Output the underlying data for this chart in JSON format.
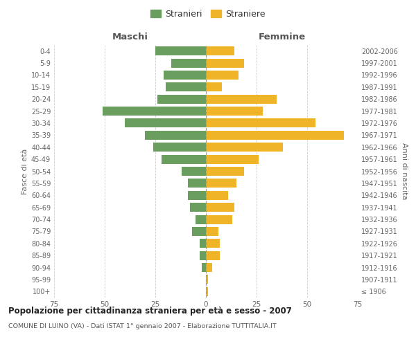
{
  "age_groups": [
    "100+",
    "95-99",
    "90-94",
    "85-89",
    "80-84",
    "75-79",
    "70-74",
    "65-69",
    "60-64",
    "55-59",
    "50-54",
    "45-49",
    "40-44",
    "35-39",
    "30-34",
    "25-29",
    "20-24",
    "15-19",
    "10-14",
    "5-9",
    "0-4"
  ],
  "birth_years": [
    "≤ 1906",
    "1907-1911",
    "1912-1916",
    "1917-1921",
    "1922-1926",
    "1927-1931",
    "1932-1936",
    "1937-1941",
    "1942-1946",
    "1947-1951",
    "1952-1956",
    "1957-1961",
    "1962-1966",
    "1967-1971",
    "1972-1976",
    "1977-1981",
    "1982-1986",
    "1987-1991",
    "1992-1996",
    "1997-2001",
    "2002-2006"
  ],
  "males": [
    0,
    0,
    2,
    3,
    3,
    7,
    5,
    8,
    9,
    9,
    12,
    22,
    26,
    30,
    40,
    51,
    24,
    20,
    21,
    17,
    25
  ],
  "females": [
    1,
    1,
    3,
    7,
    7,
    6,
    13,
    14,
    11,
    15,
    19,
    26,
    38,
    68,
    54,
    28,
    35,
    8,
    16,
    19,
    14
  ],
  "male_color": "#6a9e5f",
  "female_color": "#f0b429",
  "background_color": "#ffffff",
  "grid_color": "#cccccc",
  "title": "Popolazione per cittadinanza straniera per età e sesso - 2007",
  "subtitle": "COMUNE DI LUINO (VA) - Dati ISTAT 1° gennaio 2007 - Elaborazione TUTTITALIA.IT",
  "xlabel_left": "Maschi",
  "xlabel_right": "Femmine",
  "ylabel_left": "Fasce di età",
  "ylabel_right": "Anni di nascita",
  "legend_male": "Stranieri",
  "legend_female": "Straniere",
  "xlim": 75,
  "bar_height": 0.75
}
